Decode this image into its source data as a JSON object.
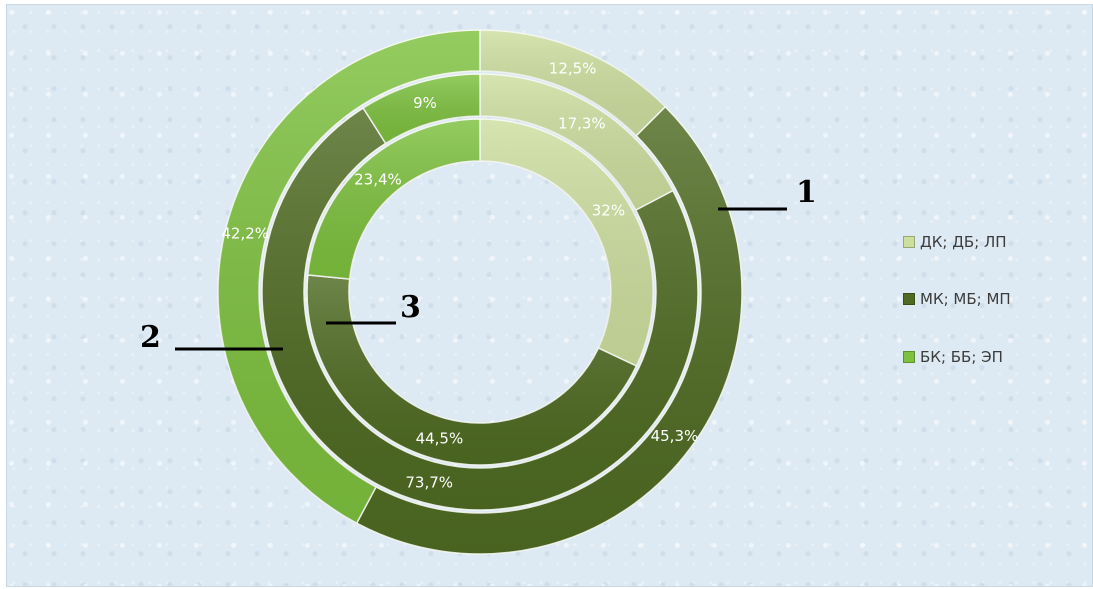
{
  "chart_data": {
    "type": "pie",
    "subtype": "nested-doughnut",
    "categories": [
      "ДК; ДБ; ЛП",
      "МК; МБ; МП",
      "БК; ББ; ЭП"
    ],
    "colors": [
      "#cddf9f",
      "#4f6b22",
      "#7dc13e"
    ],
    "series": [
      {
        "ring_number": "1",
        "values": [
          12.5,
          45.3,
          42.2
        ],
        "labels": [
          "12,5%",
          "45,3%",
          "42,2%"
        ]
      },
      {
        "ring_number": "2",
        "values": [
          17.3,
          73.7,
          9
        ],
        "labels": [
          "17,3%",
          "73,7%",
          "9%"
        ]
      },
      {
        "ring_number": "3",
        "values": [
          32,
          44.5,
          23.4
        ],
        "labels": [
          "32%",
          "44,5%",
          "23,4%"
        ]
      }
    ],
    "legend": {
      "position": "right",
      "entries": [
        "ДК; ДБ; ЛП",
        "МК; МБ; МП",
        "БК; ББ; ЭП"
      ]
    }
  }
}
